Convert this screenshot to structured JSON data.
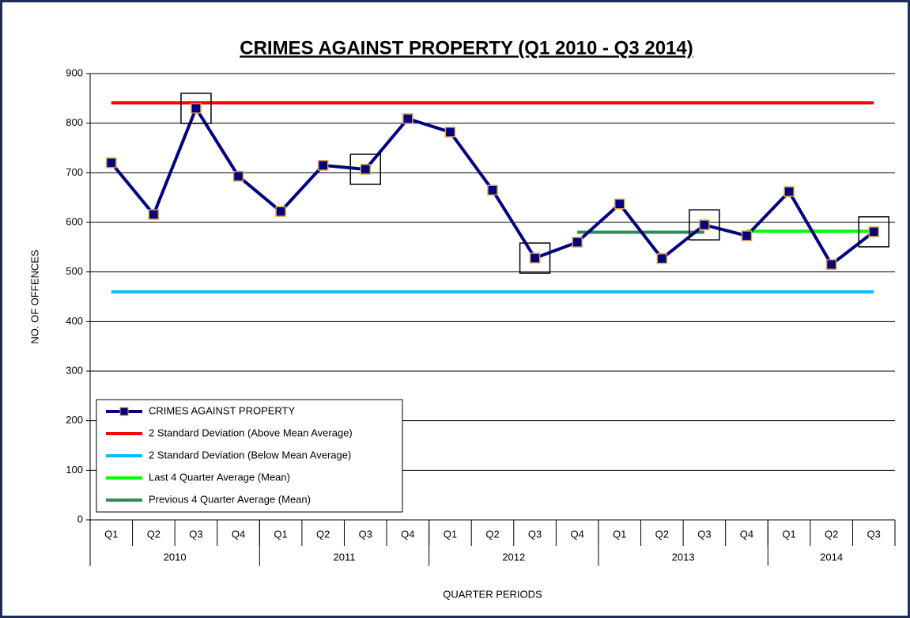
{
  "chart_data": {
    "type": "line",
    "title": "CRIMES AGAINST PROPERTY (Q1 2010 - Q3 2014)",
    "y_label": "NO. OF OFFENCES",
    "x_label": "QUARTER PERIODS",
    "categories": [
      "Q1",
      "Q2",
      "Q3",
      "Q4",
      "Q1",
      "Q2",
      "Q3",
      "Q4",
      "Q1",
      "Q2",
      "Q3",
      "Q4",
      "Q1",
      "Q2",
      "Q3",
      "Q4",
      "Q1",
      "Q2",
      "Q3"
    ],
    "years": [
      {
        "label": "2010",
        "quarters": 4
      },
      {
        "label": "2011",
        "quarters": 4
      },
      {
        "label": "2012",
        "quarters": 4
      },
      {
        "label": "2013",
        "quarters": 4
      },
      {
        "label": "2014",
        "quarters": 3
      }
    ],
    "ylim": [
      0,
      900
    ],
    "yticks": [
      0,
      100,
      200,
      300,
      400,
      500,
      600,
      700,
      800,
      900
    ],
    "grid": true,
    "boxed_points": [
      2,
      6,
      10,
      14,
      18
    ],
    "series": [
      {
        "name": "CRIMES AGAINST PROPERTY",
        "color": "#000080",
        "marker": true,
        "values": [
          720,
          616,
          830,
          693,
          622,
          715,
          707,
          809,
          782,
          665,
          528,
          560,
          637,
          527,
          595,
          573,
          662,
          515,
          581
        ]
      },
      {
        "name": "2 Standard Deviation (Above Mean Average)",
        "color": "#ff0000",
        "values": [
          841,
          841,
          841,
          841,
          841,
          841,
          841,
          841,
          841,
          841,
          841,
          841,
          841,
          841,
          841,
          841,
          841,
          841,
          841
        ]
      },
      {
        "name": "2 Standard Deviation (Below Mean Average)",
        "color": "#00bfff",
        "values": [
          460,
          460,
          460,
          460,
          460,
          460,
          460,
          460,
          460,
          460,
          460,
          460,
          460,
          460,
          460,
          460,
          460,
          460,
          460
        ]
      },
      {
        "name": "Last 4 Quarter Average (Mean)",
        "color": "#00ff00",
        "values": [
          null,
          null,
          null,
          null,
          null,
          null,
          null,
          null,
          null,
          null,
          null,
          null,
          null,
          null,
          null,
          582,
          582,
          582,
          582
        ]
      },
      {
        "name": "Previous 4 Quarter Average (Mean)",
        "color": "#2e8b57",
        "values": [
          null,
          null,
          null,
          null,
          null,
          null,
          null,
          null,
          null,
          null,
          null,
          580,
          580,
          580,
          580,
          null,
          null,
          null,
          null
        ]
      }
    ]
  }
}
